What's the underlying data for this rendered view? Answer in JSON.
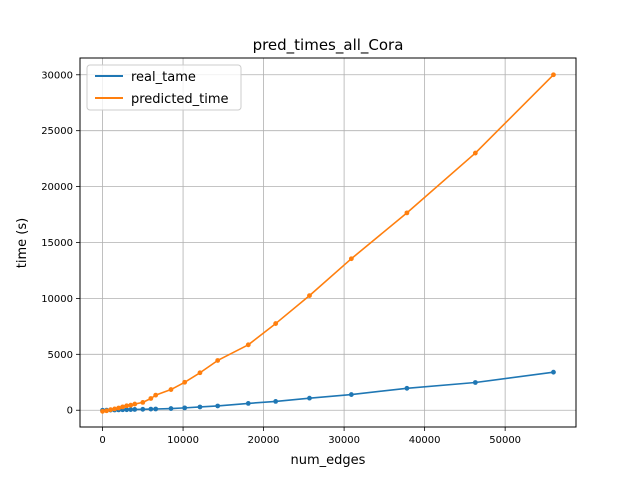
{
  "chart_data": {
    "type": "line",
    "title": "pred_times_all_Cora",
    "xlabel": "num_edges",
    "ylabel": "time (s)",
    "xlim": [
      -2800,
      58800
    ],
    "ylim": [
      -1500,
      31500
    ],
    "xticks": [
      0,
      10000,
      20000,
      30000,
      40000,
      50000
    ],
    "yticks": [
      0,
      5000,
      10000,
      15000,
      20000,
      25000,
      30000
    ],
    "grid": true,
    "legend_position": "upper-left",
    "series": [
      {
        "name": "real_tame",
        "color": "#1f77b4",
        "x": [
          0,
          500,
          1000,
          1500,
          2000,
          2500,
          3000,
          3500,
          4000,
          5000,
          6000,
          6600,
          8500,
          10200,
          12100,
          14300,
          18100,
          21500,
          25700,
          30900,
          37800,
          46300,
          56000
        ],
        "y": [
          0,
          5,
          10,
          20,
          30,
          40,
          50,
          60,
          70,
          80,
          100,
          110,
          150,
          210,
          290,
          380,
          610,
          790,
          1080,
          1400,
          1960,
          2480,
          3400
        ]
      },
      {
        "name": "predicted_time",
        "color": "#ff7f0e",
        "x": [
          0,
          500,
          1000,
          1500,
          2000,
          2500,
          3000,
          3500,
          4000,
          5000,
          6000,
          6600,
          8500,
          10200,
          12100,
          14300,
          18100,
          21500,
          25700,
          30900,
          37800,
          46300,
          56000
        ],
        "y": [
          -100,
          -50,
          50,
          120,
          200,
          300,
          400,
          450,
          550,
          700,
          1050,
          1350,
          1850,
          2500,
          3350,
          4450,
          5850,
          7750,
          10250,
          13550,
          17650,
          23000,
          30000
        ]
      }
    ]
  }
}
